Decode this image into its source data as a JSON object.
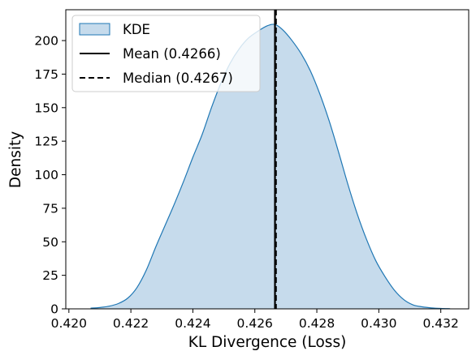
{
  "chart_data": {
    "type": "area",
    "title": "",
    "xlabel": "KL Divergence (Loss)",
    "ylabel": "Density",
    "xlim": [
      0.4199,
      0.4329
    ],
    "ylim": [
      0,
      223
    ],
    "x_ticks": [
      "0.420",
      "0.422",
      "0.424",
      "0.426",
      "0.428",
      "0.430",
      "0.432"
    ],
    "y_ticks": [
      "0",
      "25",
      "50",
      "75",
      "100",
      "125",
      "150",
      "175",
      "200"
    ],
    "grid": false,
    "legend_position": "top-left",
    "series": [
      {
        "name": "KDE",
        "kind": "kde",
        "fill_color": "#c6dbec",
        "line_color": "#1f77b4",
        "x": [
          0.4207,
          0.421,
          0.4213,
          0.4216,
          0.4219,
          0.4222,
          0.4225,
          0.4228,
          0.4231,
          0.4234,
          0.4237,
          0.424,
          0.4243,
          0.4246,
          0.4249,
          0.4252,
          0.4255,
          0.4258,
          0.4261,
          0.4264,
          0.42665,
          0.4269,
          0.4272,
          0.4275,
          0.4278,
          0.4281,
          0.4284,
          0.4287,
          0.429,
          0.4293,
          0.4296,
          0.4299,
          0.4302,
          0.4305,
          0.4308,
          0.4311,
          0.4314,
          0.4317,
          0.432,
          0.4323
        ],
        "y": [
          0.5,
          1,
          2,
          4,
          8,
          16,
          29,
          46,
          62,
          78,
          95,
          113,
          130,
          150,
          168,
          183,
          194,
          202,
          207,
          211,
          212,
          208,
          200,
          190,
          177,
          160,
          140,
          117,
          93,
          71,
          52,
          36,
          24,
          14,
          7,
          3,
          1.5,
          0.7,
          0.3,
          0.1
        ]
      },
      {
        "name": "Mean (0.4266)",
        "kind": "vline",
        "x": 0.42665,
        "line_color": "#000000",
        "style": "solid"
      },
      {
        "name": "Median (0.4267)",
        "kind": "vline",
        "x": 0.42668,
        "line_color": "#000000",
        "style": "dashed"
      }
    ]
  }
}
